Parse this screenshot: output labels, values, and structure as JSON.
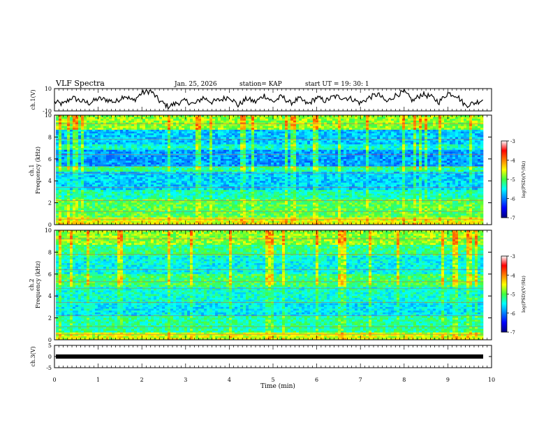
{
  "header": {
    "title": "VLF Spectra",
    "date": "Jan. 25, 2026",
    "station": "station= KAP",
    "start": "start  UT =   19: 30: 1"
  },
  "chart_data": [
    {
      "type": "line",
      "name": "ch1-waveform",
      "ylabel": "ch.1(V)",
      "ylim": [
        -10,
        10
      ],
      "y_ticks": [
        "10",
        "-10"
      ],
      "x": [
        0.0,
        0.2,
        0.4,
        0.6,
        0.8,
        1.0,
        1.2,
        1.4,
        1.6,
        1.8,
        2.0,
        2.2,
        2.4,
        2.6,
        2.8,
        3.0,
        3.2,
        3.4,
        3.6,
        3.8,
        4.0,
        4.2,
        4.4,
        4.6,
        4.8,
        5.0,
        5.2,
        5.4,
        5.6,
        5.8,
        6.0,
        6.2,
        6.4,
        6.6,
        6.8,
        7.0,
        7.2,
        7.4,
        7.6,
        7.8,
        8.0,
        8.2,
        8.4,
        8.6,
        8.8,
        9.0,
        9.2,
        9.4,
        9.6,
        9.8
      ],
      "values": [
        -2,
        -4,
        2,
        -1,
        -3,
        1,
        0,
        -2,
        4,
        -1,
        6,
        8,
        -1,
        -6,
        -3,
        -1,
        -4,
        2,
        -2,
        0,
        3,
        -5,
        1,
        -2,
        4,
        -2,
        3,
        -3,
        1,
        -4,
        2,
        -1,
        3,
        2,
        1,
        -3,
        2,
        5,
        -2,
        4,
        7,
        -1,
        5,
        3,
        -2,
        6,
        4,
        -5,
        -3,
        0
      ]
    },
    {
      "type": "heatmap",
      "name": "ch1-spectrogram",
      "ylabel": "ch.1\nFrequency (kHz)",
      "xlim": [
        0,
        10
      ],
      "ylim": [
        0,
        10
      ],
      "y_ticks": [
        "0",
        "2",
        "4",
        "6",
        "8",
        "10"
      ],
      "colorbar": {
        "label": "log(PSD)(V²/Hz)",
        "range": [
          -7,
          -3
        ],
        "ticks": [
          "-3",
          "-4",
          "-5",
          "-6",
          "-7"
        ]
      }
    },
    {
      "type": "heatmap",
      "name": "ch2-spectrogram",
      "ylabel": "ch.2\nFrequency (kHz)",
      "xlim": [
        0,
        10
      ],
      "ylim": [
        0,
        10
      ],
      "y_ticks": [
        "0",
        "2",
        "4",
        "6",
        "8",
        "10"
      ],
      "colorbar": {
        "label": "log(PSD)(V²/Hz)",
        "range": [
          -7,
          -3
        ],
        "ticks": [
          "-3",
          "-4",
          "-5",
          "-6",
          "-7"
        ]
      }
    },
    {
      "type": "line",
      "name": "ch3-waveform",
      "ylabel": "ch.3(V)",
      "ylim": [
        -5,
        5
      ],
      "y_ticks": [
        "5",
        "0",
        "-5"
      ],
      "x": [
        0,
        9.8
      ],
      "values": [
        0,
        0
      ]
    }
  ],
  "x_axis": {
    "label": "Time (min)",
    "ticks": [
      "0",
      "1",
      "2",
      "3",
      "4",
      "5",
      "6",
      "7",
      "8",
      "9",
      "10"
    ]
  }
}
